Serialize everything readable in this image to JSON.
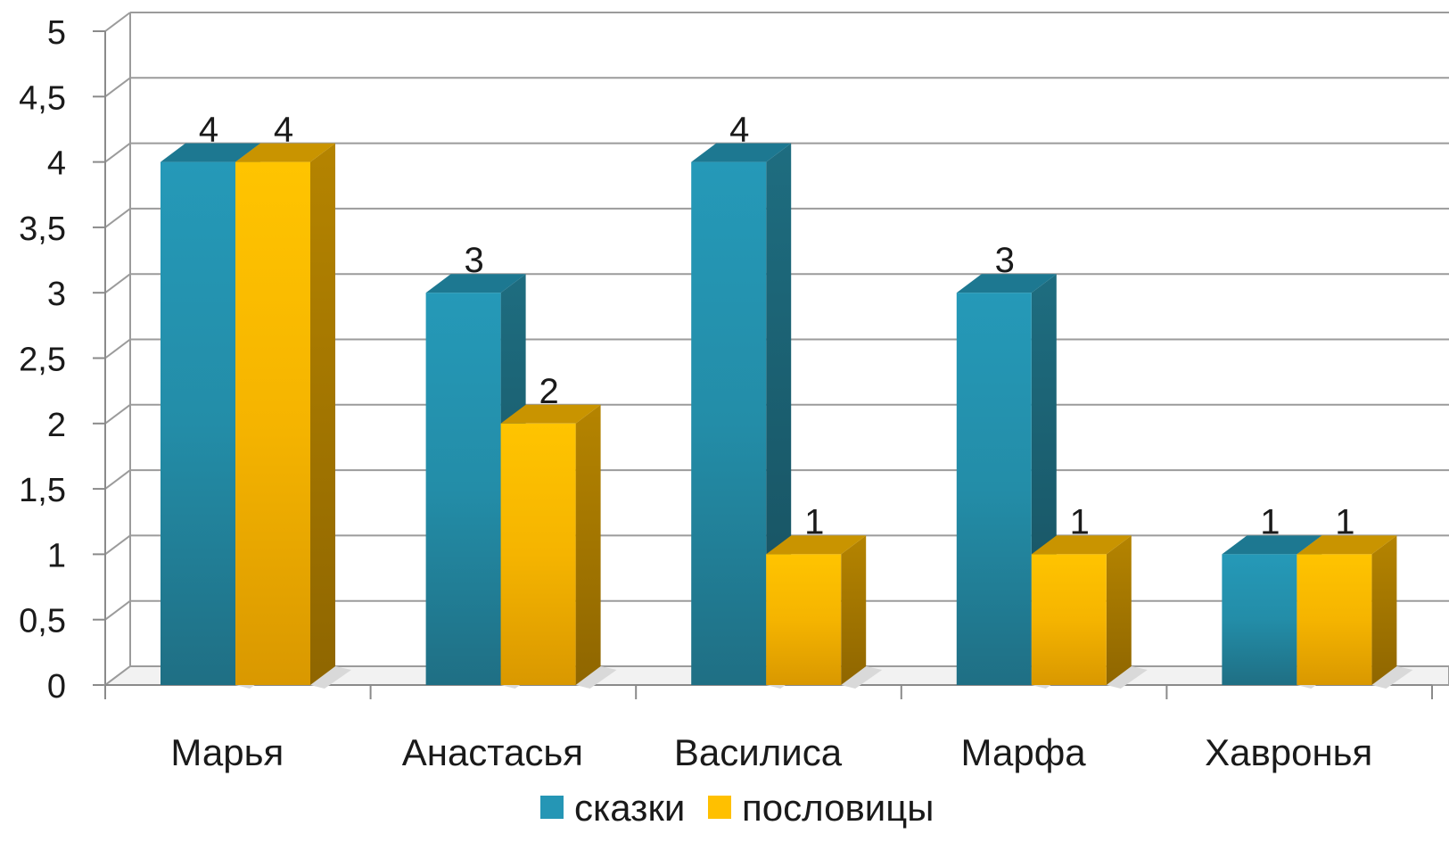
{
  "chart_data": {
    "type": "bar",
    "title": "",
    "xlabel": "",
    "ylabel": "",
    "categories": [
      "Марья",
      "Анастасья",
      "Василиса",
      "Марфа",
      "Хавронья"
    ],
    "series": [
      {
        "name": "сказки",
        "values": [
          4,
          3,
          4,
          3,
          1
        ]
      },
      {
        "name": "пословицы",
        "values": [
          4,
          2,
          1,
          1,
          1
        ]
      }
    ],
    "ylim": [
      0,
      5
    ],
    "yticks": [
      "0",
      "0,5",
      "1",
      "1,5",
      "2",
      "2,5",
      "3",
      "3,5",
      "4",
      "4,5",
      "5"
    ],
    "data_labels": true,
    "grid": true,
    "legend_position": "bottom",
    "style": "3d-clustered-column"
  },
  "colors": {
    "series": [
      "#2596b5",
      "#ffc000"
    ],
    "series_dark": [
      "#1f6e80",
      "#d99a00"
    ],
    "grid": "#9b9b9b",
    "axis": "#8a8a8a"
  }
}
